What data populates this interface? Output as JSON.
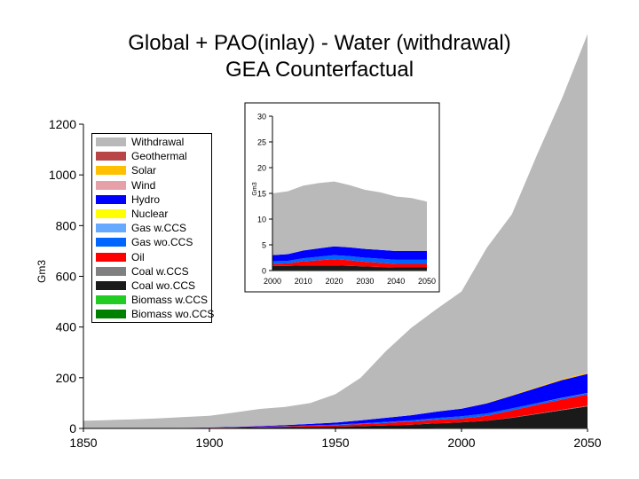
{
  "title": {
    "line1": "Global + PAO(inlay) - Water (withdrawal)",
    "line2": "GEA Counterfactual"
  },
  "legend": {
    "items": [
      {
        "label": "Withdrawal",
        "color": "#b9b9b9"
      },
      {
        "label": "Geothermal",
        "color": "#b94646"
      },
      {
        "label": "Solar",
        "color": "#ffc000"
      },
      {
        "label": "Wind",
        "color": "#e6a0a8"
      },
      {
        "label": "Hydro",
        "color": "#0000ff"
      },
      {
        "label": "Nuclear",
        "color": "#ffff00"
      },
      {
        "label": "Gas w.CCS",
        "color": "#66aaff"
      },
      {
        "label": "Gas wo.CCS",
        "color": "#0066ff"
      },
      {
        "label": "Oil",
        "color": "#ff0000"
      },
      {
        "label": "Coal w.CCS",
        "color": "#808080"
      },
      {
        "label": "Coal wo.CCS",
        "color": "#1a1a1a"
      },
      {
        "label": "Biomass w.CCS",
        "color": "#22cc22"
      },
      {
        "label": "Biomass wo.CCS",
        "color": "#008000"
      }
    ]
  },
  "chart_data": [
    {
      "type": "area",
      "title": "Global + PAO(inlay) - Water (withdrawal)",
      "subtitle": "GEA Counterfactual",
      "ylabel": "Gm3",
      "xlabel": "",
      "xlim": [
        1850,
        2050
      ],
      "ylim": [
        0,
        1200
      ],
      "xticks": [
        1850,
        1900,
        1950,
        2000,
        2050
      ],
      "yticks": [
        0,
        200,
        400,
        600,
        800,
        1000,
        1200
      ],
      "x": [
        1850,
        1860,
        1870,
        1880,
        1890,
        1900,
        1910,
        1920,
        1930,
        1940,
        1950,
        1960,
        1970,
        1980,
        1990,
        2000,
        2010,
        2020,
        2030,
        2040,
        2050
      ],
      "series": [
        {
          "name": "Biomass wo.CCS",
          "color": "#008000",
          "values": [
            1,
            1,
            1,
            1,
            1,
            1,
            1,
            1,
            1,
            1,
            1,
            1,
            1,
            1,
            2,
            2,
            2,
            2,
            2,
            2,
            2
          ]
        },
        {
          "name": "Biomass w.CCS",
          "color": "#22cc22",
          "values": [
            0,
            0,
            0,
            0,
            0,
            0,
            0,
            0,
            0,
            0,
            0,
            0,
            0,
            0,
            0,
            0,
            0,
            0,
            0,
            0,
            0
          ]
        },
        {
          "name": "Coal wo.CCS",
          "color": "#1a1a1a",
          "values": [
            0,
            0,
            0,
            0,
            1,
            1,
            2,
            3,
            4,
            5,
            6,
            8,
            11,
            14,
            18,
            22,
            28,
            40,
            55,
            70,
            85
          ]
        },
        {
          "name": "Coal w.CCS",
          "color": "#808080",
          "values": [
            0,
            0,
            0,
            0,
            0,
            0,
            0,
            0,
            0,
            0,
            0,
            0,
            0,
            0,
            0,
            0,
            0,
            1,
            1,
            2,
            2
          ]
        },
        {
          "name": "Oil",
          "color": "#ff0000",
          "values": [
            0,
            0,
            0,
            0,
            0,
            1,
            1,
            2,
            3,
            5,
            6,
            8,
            10,
            12,
            14,
            15,
            20,
            28,
            35,
            40,
            45
          ]
        },
        {
          "name": "Gas wo.CCS",
          "color": "#0066ff",
          "values": [
            0,
            0,
            0,
            0,
            0,
            0,
            0,
            0,
            1,
            1,
            2,
            3,
            4,
            5,
            7,
            9,
            9,
            8,
            7,
            6,
            5
          ]
        },
        {
          "name": "Gas w.CCS",
          "color": "#66aaff",
          "values": [
            0,
            0,
            0,
            0,
            0,
            0,
            0,
            0,
            0,
            0,
            0,
            0,
            0,
            0,
            0,
            0,
            0,
            0,
            0,
            1,
            1
          ]
        },
        {
          "name": "Nuclear",
          "color": "#ffff00",
          "values": [
            0,
            0,
            0,
            0,
            0,
            0,
            0,
            0,
            0,
            0,
            0,
            0,
            0,
            0,
            0,
            0,
            0,
            0,
            0,
            0,
            0
          ]
        },
        {
          "name": "Hydro",
          "color": "#0000ff",
          "values": [
            0,
            0,
            0,
            0,
            0,
            1,
            2,
            3,
            4,
            6,
            8,
            12,
            16,
            20,
            25,
            30,
            40,
            50,
            60,
            70,
            75
          ]
        },
        {
          "name": "Wind",
          "color": "#e6a0a8",
          "values": [
            0,
            0,
            0,
            0,
            0,
            0,
            0,
            0,
            0,
            0,
            0,
            0,
            0,
            0,
            0,
            0,
            0,
            0,
            0,
            0,
            0
          ]
        },
        {
          "name": "Solar",
          "color": "#ffc000",
          "values": [
            0,
            0,
            0,
            0,
            0,
            0,
            0,
            0,
            0,
            0,
            0,
            0,
            0,
            0,
            0,
            0,
            1,
            2,
            3,
            4,
            5
          ]
        },
        {
          "name": "Geothermal",
          "color": "#b94646",
          "values": [
            0,
            0,
            0,
            0,
            0,
            0,
            0,
            0,
            0,
            0,
            0,
            0,
            0,
            0,
            0,
            0,
            0,
            0,
            0,
            0,
            0
          ]
        },
        {
          "name": "Withdrawal",
          "color": "#b9b9b9",
          "values": [
            29,
            32,
            35,
            39,
            43,
            46,
            57,
            68,
            72,
            82,
            112,
            168,
            263,
            344,
            404,
            462,
            612,
            714,
            917,
            1110,
            1335
          ]
        }
      ]
    },
    {
      "type": "area",
      "title": "",
      "ylabel": "Gm3",
      "xlabel": "",
      "xlim": [
        2000,
        2050
      ],
      "ylim": [
        0,
        30
      ],
      "xticks": [
        2000,
        2010,
        2020,
        2030,
        2040,
        2050
      ],
      "yticks": [
        0,
        5,
        10,
        15,
        20,
        25,
        30
      ],
      "x": [
        2000,
        2005,
        2010,
        2015,
        2020,
        2025,
        2030,
        2035,
        2040,
        2045,
        2050
      ],
      "series": [
        {
          "name": "Biomass wo.CCS",
          "color": "#008000",
          "values": [
            0.1,
            0.1,
            0.1,
            0.1,
            0.1,
            0.1,
            0.1,
            0.1,
            0.1,
            0.1,
            0.1
          ]
        },
        {
          "name": "Biomass w.CCS",
          "color": "#22cc22",
          "values": [
            0,
            0,
            0,
            0,
            0,
            0,
            0,
            0,
            0,
            0,
            0
          ]
        },
        {
          "name": "Coal wo.CCS",
          "color": "#1a1a1a",
          "values": [
            0.8,
            0.8,
            0.9,
            0.9,
            0.9,
            0.8,
            0.7,
            0.6,
            0.5,
            0.5,
            0.5
          ]
        },
        {
          "name": "Coal w.CCS",
          "color": "#808080",
          "values": [
            0,
            0,
            0,
            0,
            0,
            0,
            0,
            0,
            0,
            0,
            0
          ]
        },
        {
          "name": "Oil",
          "color": "#ff0000",
          "values": [
            0.4,
            0.5,
            0.8,
            1.0,
            1.2,
            1.1,
            0.9,
            0.8,
            0.7,
            0.7,
            0.7
          ]
        },
        {
          "name": "Gas wo.CCS",
          "color": "#0066ff",
          "values": [
            0.5,
            0.5,
            0.6,
            0.7,
            0.8,
            0.8,
            0.8,
            0.8,
            0.8,
            0.8,
            0.8
          ]
        },
        {
          "name": "Gas w.CCS",
          "color": "#66aaff",
          "values": [
            0,
            0,
            0,
            0,
            0,
            0,
            0,
            0,
            0,
            0,
            0
          ]
        },
        {
          "name": "Nuclear",
          "color": "#ffff00",
          "values": [
            0,
            0,
            0,
            0,
            0,
            0,
            0,
            0,
            0,
            0,
            0
          ]
        },
        {
          "name": "Hydro",
          "color": "#0000ff",
          "values": [
            1.2,
            1.3,
            1.5,
            1.6,
            1.7,
            1.7,
            1.7,
            1.7,
            1.7,
            1.7,
            1.7
          ]
        },
        {
          "name": "Wind",
          "color": "#e6a0a8",
          "values": [
            0,
            0,
            0,
            0,
            0,
            0,
            0,
            0,
            0,
            0,
            0
          ]
        },
        {
          "name": "Solar",
          "color": "#ffc000",
          "values": [
            0,
            0,
            0,
            0,
            0,
            0,
            0,
            0,
            0,
            0,
            0
          ]
        },
        {
          "name": "Geothermal",
          "color": "#b94646",
          "values": [
            0,
            0,
            0,
            0,
            0,
            0,
            0,
            0,
            0,
            0,
            0
          ]
        },
        {
          "name": "Withdrawal",
          "color": "#b9b9b9",
          "values": [
            12.0,
            12.2,
            12.6,
            12.7,
            12.6,
            12.1,
            11.5,
            11.2,
            10.6,
            10.3,
            9.6
          ]
        }
      ]
    }
  ]
}
